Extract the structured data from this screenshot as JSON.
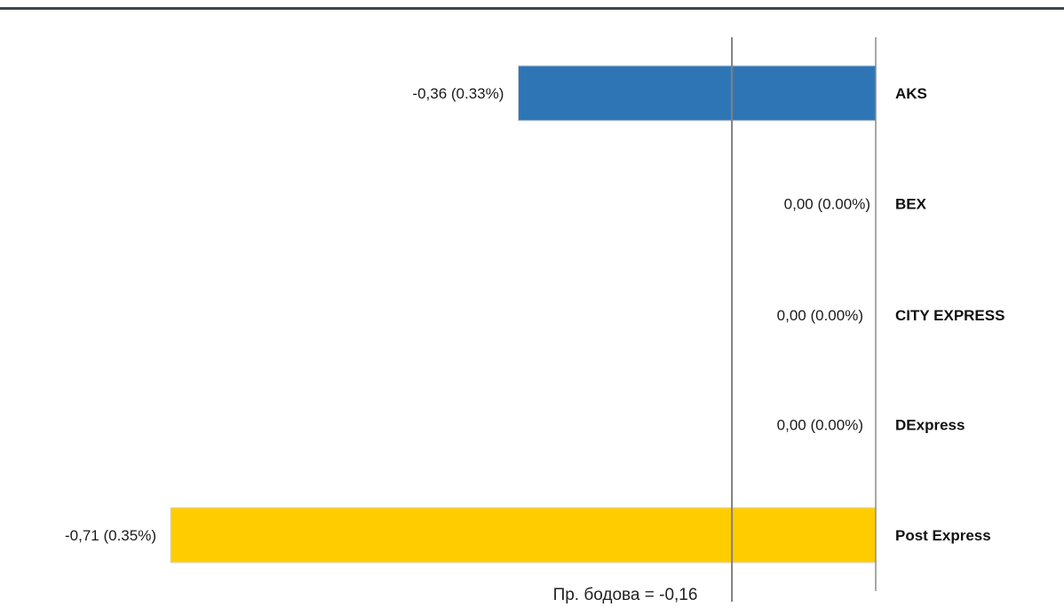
{
  "chart_data": {
    "type": "bar",
    "orientation": "horizontal",
    "categories": [
      "AKS",
      "BEX",
      "CITY EXPRESS",
      "DExpress",
      "Post Express"
    ],
    "values": [
      -0.36,
      0.0,
      0.0,
      0.0,
      -0.71
    ],
    "value_labels": [
      "-0,36 (0.33%)",
      "0,00 (0.00%)",
      "0,00 (0.00%)",
      "0,00 (0.00%)",
      "-0,71 (0.35%)"
    ],
    "colors": [
      "#2e75b6",
      "#2e75b6",
      "#2e75b6",
      "#2e75b6",
      "#ffcc00"
    ],
    "xlim": [
      -0.71,
      0
    ],
    "average": -0.16,
    "average_label": "Пр. бодова = -0,16",
    "title": "",
    "xlabel": "",
    "ylabel": "",
    "grid": false,
    "legend": "none"
  }
}
